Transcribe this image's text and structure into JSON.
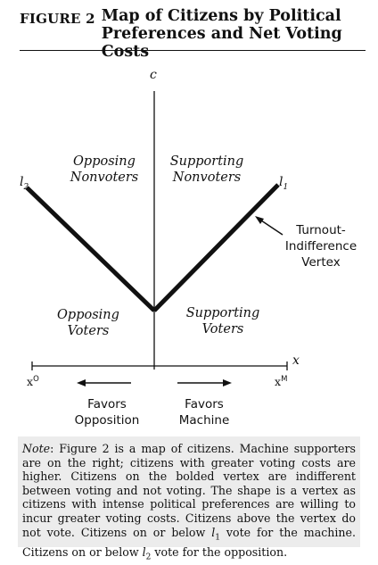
{
  "heading": {
    "figure_label": "FIGURE 2",
    "title_line1": "Map of Citizens by Political",
    "title_line2": "Preferences and Net Voting Costs"
  },
  "axes": {
    "y_label": "c",
    "x_label": "x",
    "x_left_label": "x",
    "x_left_sup": "O",
    "x_right_label": "x",
    "x_right_sup": "M"
  },
  "lines": {
    "left_label": "l",
    "left_sub": "2",
    "right_label": "l",
    "right_sub": "1"
  },
  "regions": {
    "top_left": [
      "Opposing",
      "Nonvoters"
    ],
    "top_right": [
      "Supporting",
      "Nonvoters"
    ],
    "bottom_left": [
      "Opposing",
      "Voters"
    ],
    "bottom_right": [
      "Supporting",
      "Voters"
    ]
  },
  "annotation": [
    "Turnout-",
    "Indifference",
    "Vertex"
  ],
  "directions": {
    "left": [
      "Favors",
      "Opposition"
    ],
    "right": [
      "Favors",
      "Machine"
    ]
  },
  "note": {
    "lead": "Note",
    "text": ": Figure 2 is a map of citizens. Machine supporters are on the right; citizens with greater voting costs are higher. Citizens on the bolded vertex are indifferent between voting and not voting. The shape is a vertex as citizens with intense political preferences are willing to incur greater voting costs. Citizens above the vertex do not vote. Citizens on or below ",
    "l1": "l",
    "l1_sub": "1",
    "mid": " vote for the machine. Citizens on or below ",
    "l2": "l",
    "l2_sub": "2",
    "end": " vote for the opposition."
  },
  "colors": {
    "ink": "#111111",
    "note_background": "#ececec"
  }
}
